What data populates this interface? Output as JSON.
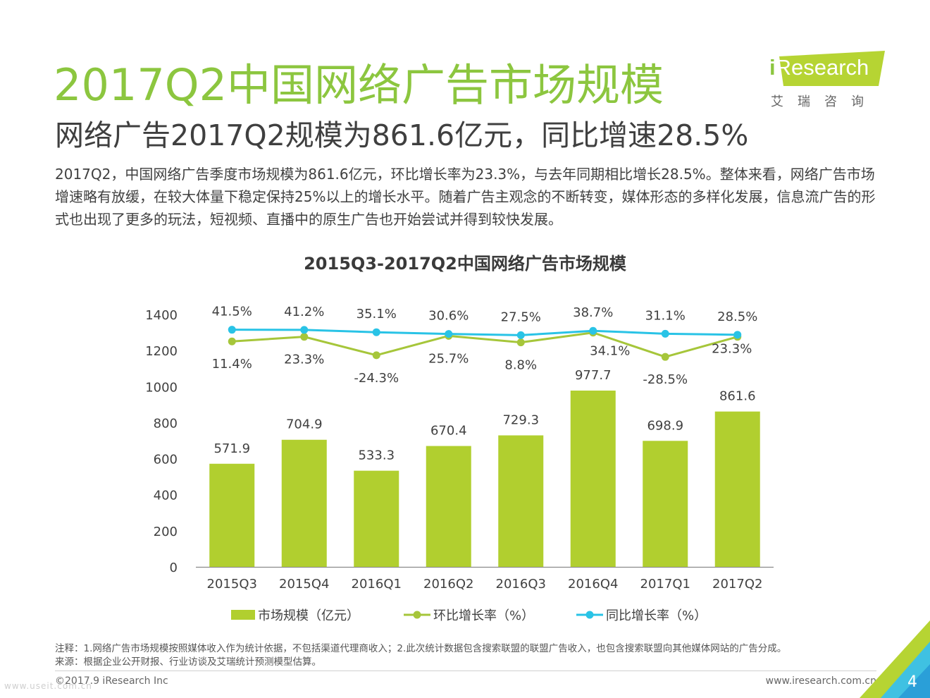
{
  "page": {
    "title": "2017Q2中国网络广告市场规模",
    "subtitle": "网络广告2017Q2规模为861.6亿元，同比增速28.5%",
    "body": "2017Q2，中国网络广告季度市场规模为861.6亿元，环比增长率为23.3%，与去年同期相比增长28.5%。整体来看，网络广告市场增速略有放缓，在较大体量下稳定保持25%以上的增长水平。随着广告主观念的不断转变，媒体形态的多样化发展，信息流广告的形式也出现了更多的玩法，短视频、直播中的原生广告也开始尝试并得到较快发展。",
    "note1": "注释：1.网络广告市场规模按照媒体收入作为统计依据，不包括渠道代理商收入；2.此次统计数据包含搜索联盟的联盟广告收入，也包含搜索联盟向其他媒体网站的广告分成。",
    "note2": "来源：根据企业公开财报、行业访谈及艾瑞统计预测模型估算。",
    "copyright": "©2017.9 iResearch Inc",
    "website": "www.iresearch.com.cn",
    "page_number": "4",
    "watermark": "www.useit.com.cn"
  },
  "logo": {
    "text_i": "i",
    "text_rest": "Research",
    "cn": "艾瑞咨询"
  },
  "chart_data": {
    "type": "bar",
    "title": "2015Q3-2017Q2中国网络广告市场规模",
    "categories": [
      "2015Q3",
      "2015Q4",
      "2016Q1",
      "2016Q2",
      "2016Q3",
      "2016Q4",
      "2017Q1",
      "2017Q2"
    ],
    "ylim": [
      0,
      1400
    ],
    "yticks": [
      0,
      200,
      400,
      600,
      800,
      1000,
      1200,
      1400
    ],
    "series": [
      {
        "name": "市场规模（亿元）",
        "kind": "bar",
        "color": "#b1cf2f",
        "values": [
          571.9,
          704.9,
          533.3,
          670.4,
          729.3,
          977.7,
          698.9,
          861.6
        ],
        "labels": [
          "571.9",
          "704.9",
          "533.3",
          "670.4",
          "729.3",
          "977.7",
          "698.9",
          "861.6"
        ]
      },
      {
        "name": "环比增长率（%）",
        "kind": "line",
        "color": "#a6c63a",
        "values": [
          11.4,
          23.3,
          -24.3,
          25.7,
          8.8,
          34.1,
          -28.5,
          23.3
        ],
        "labels": [
          "11.4%",
          "23.3%",
          "-24.3%",
          "25.7%",
          "8.8%",
          "34.1%",
          "-28.5%",
          "23.3%"
        ]
      },
      {
        "name": "同比增长率（%）",
        "kind": "line",
        "color": "#29c3e6",
        "values": [
          41.5,
          41.2,
          35.1,
          30.6,
          27.5,
          38.7,
          31.1,
          28.5
        ],
        "labels": [
          "41.5%",
          "41.2%",
          "35.1%",
          "30.6%",
          "27.5%",
          "38.7%",
          "31.1%",
          "28.5%"
        ]
      }
    ],
    "legend": "bottom"
  }
}
